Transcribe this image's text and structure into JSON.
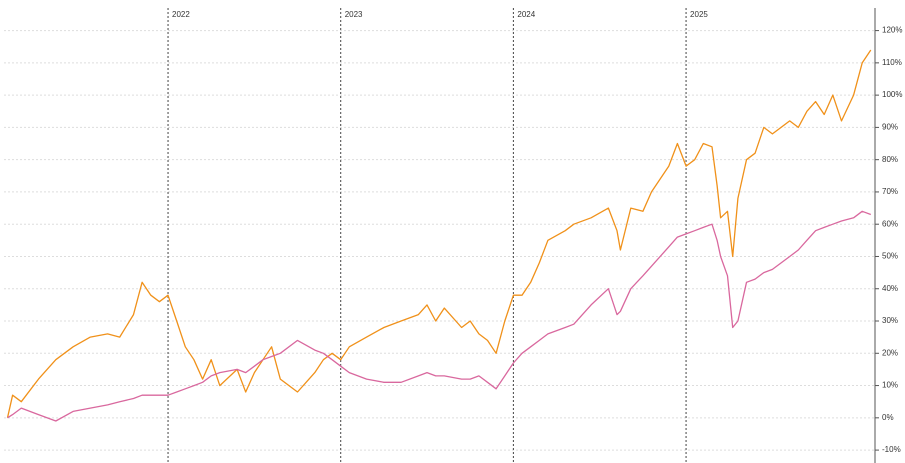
{
  "chart_data": {
    "type": "line",
    "x": [
      2021.07,
      2021.1,
      2021.15,
      2021.25,
      2021.35,
      2021.45,
      2021.55,
      2021.65,
      2021.72,
      2021.8,
      2021.85,
      2021.9,
      2021.95,
      2022.0,
      2022.05,
      2022.1,
      2022.15,
      2022.2,
      2022.25,
      2022.3,
      2022.4,
      2022.45,
      2022.5,
      2022.55,
      2022.6,
      2022.65,
      2022.75,
      2022.85,
      2022.9,
      2022.95,
      2023.0,
      2023.05,
      2023.15,
      2023.25,
      2023.35,
      2023.45,
      2023.5,
      2023.55,
      2023.6,
      2023.7,
      2023.75,
      2023.8,
      2023.85,
      2023.9,
      2023.95,
      2024.0,
      2024.05,
      2024.1,
      2024.15,
      2024.2,
      2024.3,
      2024.35,
      2024.45,
      2024.55,
      2024.6,
      2024.62,
      2024.68,
      2024.75,
      2024.8,
      2024.9,
      2024.95,
      2025.0,
      2025.05,
      2025.1,
      2025.15,
      2025.18,
      2025.2,
      2025.24,
      2025.27,
      2025.3,
      2025.35,
      2025.4,
      2025.45,
      2025.5,
      2025.6,
      2025.65,
      2025.7,
      2025.75,
      2025.8,
      2025.85,
      2025.9,
      2025.97,
      2026.02,
      2026.07
    ],
    "series": [
      {
        "color": "#f0911a",
        "values": [
          0,
          7,
          5,
          12,
          18,
          22,
          25,
          26,
          25,
          32,
          42,
          38,
          36,
          38,
          30,
          22,
          18,
          12,
          18,
          10,
          15,
          8,
          14,
          18,
          22,
          12,
          8,
          14,
          18,
          20,
          18,
          22,
          25,
          28,
          30,
          32,
          35,
          30,
          34,
          28,
          30,
          26,
          24,
          20,
          30,
          38,
          38,
          42,
          48,
          55,
          58,
          60,
          62,
          65,
          58,
          52,
          65,
          64,
          70,
          78,
          85,
          78,
          80,
          85,
          84,
          72,
          62,
          64,
          50,
          68,
          80,
          82,
          90,
          88,
          92,
          90,
          95,
          98,
          94,
          100,
          92,
          100,
          110,
          114
        ]
      },
      {
        "color": "#d9689e",
        "values": [
          0,
          1,
          3,
          1,
          -1,
          2,
          3,
          4,
          5,
          6,
          7,
          7,
          7,
          7,
          8,
          9,
          10,
          11,
          13,
          14,
          15,
          14,
          16,
          18,
          19,
          20,
          24,
          21,
          20,
          18,
          16,
          14,
          12,
          11,
          11,
          13,
          14,
          13,
          13,
          12,
          12,
          13,
          11,
          9,
          13,
          17,
          20,
          22,
          24,
          26,
          28,
          29,
          35,
          40,
          32,
          33,
          40,
          44,
          47,
          53,
          56,
          57,
          58,
          59,
          60,
          55,
          50,
          44,
          28,
          30,
          42,
          43,
          45,
          46,
          50,
          52,
          55,
          58,
          59,
          60,
          61,
          62,
          64,
          63
        ]
      }
    ],
    "xlim": [
      2021.05,
      2026.1
    ],
    "xticks": [
      2022,
      2023,
      2024,
      2025
    ],
    "ylim": [
      -14,
      127
    ],
    "yticks": [
      {
        "value": -10,
        "label": "-10%"
      },
      {
        "value": 0,
        "label": "0%"
      },
      {
        "value": 10,
        "label": "10%"
      },
      {
        "value": 20,
        "label": "20%"
      },
      {
        "value": 30,
        "label": "30%"
      },
      {
        "value": 40,
        "label": "40%"
      },
      {
        "value": 50,
        "label": "50%"
      },
      {
        "value": 60,
        "label": "60%"
      },
      {
        "value": 70,
        "label": "70%"
      },
      {
        "value": 80,
        "label": "80%"
      },
      {
        "value": 90,
        "label": "90%"
      },
      {
        "value": 100,
        "label": "100%"
      },
      {
        "value": 110,
        "label": "110%"
      },
      {
        "value": 120,
        "label": "120%"
      }
    ],
    "grid": true
  }
}
